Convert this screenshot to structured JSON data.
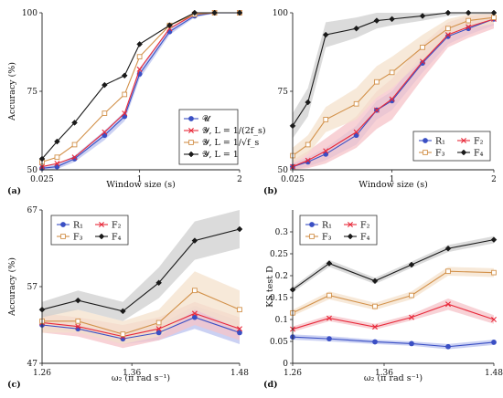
{
  "colors": {
    "s1": "#3a4fc4",
    "s2": "#e8293a",
    "s3": "#d2914a",
    "s4": "#1a1a1a",
    "band_s1": "#b9c2ef",
    "band_s2": "#f6c3c8",
    "band_s3": "#f4e2cc",
    "band_s4": "#cfcfcf"
  },
  "chart_data": [
    {
      "panel": "(a)",
      "type": "line",
      "xlabel": "Window size (s)",
      "ylabel": "Accuracy (%)",
      "xlim": [
        0.025,
        2
      ],
      "ylim": [
        50,
        100
      ],
      "xticks": [
        0.025,
        1,
        2
      ],
      "yticks": [
        50,
        75,
        100
      ],
      "x_tick_labels": [
        "0.025",
        "1",
        "2"
      ],
      "y_tick_labels": [
        "50",
        "75",
        "100"
      ],
      "legend_position": "lower-right",
      "x": [
        0.025,
        0.175,
        0.35,
        0.65,
        0.85,
        1.0,
        1.3,
        1.55,
        1.75,
        2.0
      ],
      "series": [
        {
          "name": "𝓤",
          "color": "s1",
          "marker": "circle",
          "values": [
            50.5,
            51.0,
            53.5,
            61.0,
            67.0,
            80.5,
            94.0,
            99.0,
            100,
            100
          ],
          "band": [
            [
              50.0,
              51.0
            ],
            [
              50.2,
              51.8
            ],
            [
              52.5,
              54.5
            ],
            [
              59.5,
              62.5
            ],
            [
              65.5,
              68.5
            ],
            [
              79.0,
              82.0
            ],
            [
              93.0,
              95.0
            ],
            [
              98.5,
              99.5
            ],
            [
              99.8,
              100
            ],
            [
              99.8,
              100
            ]
          ]
        },
        {
          "name": "𝓨, L = 1/(2f_s)",
          "color": "s2",
          "marker": "x",
          "values": [
            51.0,
            52.0,
            54.0,
            62.0,
            68.0,
            82.0,
            95.0,
            99.5,
            100,
            100
          ]
        },
        {
          "name": "𝓨, L = 1/√f_s",
          "color": "s3",
          "marker": "square",
          "values": [
            52.5,
            54.0,
            58.0,
            68.0,
            74.0,
            86.0,
            96.0,
            99.5,
            100,
            100
          ]
        },
        {
          "name": "𝓨, L = 1",
          "color": "s4",
          "marker": "diamond",
          "values": [
            53.5,
            59.0,
            65.0,
            77.0,
            80.0,
            90.0,
            96.0,
            100,
            100,
            100
          ]
        }
      ]
    },
    {
      "panel": "(b)",
      "type": "line",
      "xlabel": "Window size (s)",
      "ylabel": "",
      "xlim": [
        0.025,
        2
      ],
      "ylim": [
        50,
        100
      ],
      "xticks": [
        0.025,
        1,
        2
      ],
      "yticks": [
        50,
        75,
        100
      ],
      "x_tick_labels": [
        "0.025",
        "1",
        "2"
      ],
      "y_tick_labels": [
        "50",
        "75",
        "100"
      ],
      "legend_position": "lower-right",
      "x": [
        0.025,
        0.175,
        0.35,
        0.65,
        0.85,
        1.0,
        1.3,
        1.55,
        1.75,
        2.0
      ],
      "series": [
        {
          "name": "R₁",
          "color": "s1",
          "marker": "circle",
          "values": [
            51.0,
            52.5,
            55.0,
            61.0,
            69.0,
            72.0,
            84.0,
            92.5,
            95.0,
            98.0
          ],
          "band": [
            [
              50.0,
              52.0
            ],
            [
              51.0,
              54.0
            ],
            [
              53.0,
              57.0
            ],
            [
              58.0,
              64.0
            ],
            [
              66.0,
              72.0
            ],
            [
              69.0,
              75.0
            ],
            [
              81.0,
              87.0
            ],
            [
              90.0,
              95.0
            ],
            [
              93.0,
              97.0
            ],
            [
              96.0,
              99.5
            ]
          ]
        },
        {
          "name": "F₂",
          "color": "s2",
          "marker": "x",
          "values": [
            51.0,
            53.0,
            56.0,
            62.0,
            69.0,
            72.5,
            84.5,
            93.0,
            95.5,
            98.0
          ],
          "band": [
            [
              49.5,
              53.0
            ],
            [
              50.5,
              56.0
            ],
            [
              52.0,
              60.0
            ],
            [
              57.0,
              67.0
            ],
            [
              63.0,
              75.0
            ],
            [
              66.0,
              79.0
            ],
            [
              79.0,
              90.0
            ],
            [
              89.0,
              97.0
            ],
            [
              92.0,
              99.0
            ],
            [
              95.0,
              100
            ]
          ]
        },
        {
          "name": "F₃",
          "color": "s3",
          "marker": "square",
          "values": [
            54.5,
            58.0,
            66.0,
            71.0,
            78.0,
            81.0,
            89.0,
            95.0,
            97.5,
            98.5
          ],
          "band": [
            [
              52.0,
              57.0
            ],
            [
              55.0,
              61.0
            ],
            [
              62.0,
              70.0
            ],
            [
              66.0,
              76.0
            ],
            [
              73.0,
              83.0
            ],
            [
              76.0,
              86.0
            ],
            [
              85.0,
              93.0
            ],
            [
              92.0,
              98.0
            ],
            [
              95.0,
              99.5
            ],
            [
              96.5,
              100
            ]
          ]
        },
        {
          "name": "F₄",
          "color": "s4",
          "marker": "diamond",
          "values": [
            64.0,
            71.5,
            93.0,
            95.0,
            97.5,
            98.0,
            99.0,
            100,
            100,
            100
          ],
          "band": [
            [
              60.0,
              68.0
            ],
            [
              67.0,
              76.0
            ],
            [
              89.0,
              97.0
            ],
            [
              92.0,
              98.5
            ],
            [
              95.0,
              100
            ],
            [
              96.0,
              100
            ],
            [
              97.5,
              100
            ],
            [
              99.0,
              100
            ],
            [
              99.5,
              100
            ],
            [
              99.5,
              100
            ]
          ]
        }
      ]
    },
    {
      "panel": "(c)",
      "type": "line",
      "xlabel": "ω₂ (π rad s⁻¹)",
      "ylabel": "Accuracy (%)",
      "xlim": [
        1.26,
        1.48
      ],
      "ylim": [
        47,
        67
      ],
      "xticks": [
        1.26,
        1.36,
        1.48
      ],
      "yticks": [
        47,
        57,
        67
      ],
      "x_tick_labels": [
        "1.26",
        "1.36",
        "1.48"
      ],
      "y_tick_labels": [
        "47",
        "57",
        "67"
      ],
      "legend_position": "top-left",
      "x": [
        1.26,
        1.3,
        1.35,
        1.39,
        1.43,
        1.48
      ],
      "series": [
        {
          "name": "R₁",
          "color": "s1",
          "marker": "circle",
          "values": [
            52.0,
            51.5,
            50.2,
            51.0,
            53.0,
            51.0
          ],
          "band": [
            [
              51.5,
              52.5
            ],
            [
              51.0,
              52.0
            ],
            [
              49.5,
              51.0
            ],
            [
              50.0,
              52.0
            ],
            [
              51.5,
              54.5
            ],
            [
              49.5,
              52.5
            ]
          ]
        },
        {
          "name": "F₂",
          "color": "s2",
          "marker": "x",
          "values": [
            52.3,
            51.8,
            50.5,
            51.5,
            53.5,
            51.5
          ],
          "band": [
            [
              51.0,
              53.5
            ],
            [
              50.5,
              53.0
            ],
            [
              49.0,
              52.0
            ],
            [
              50.0,
              53.0
            ],
            [
              52.0,
              55.0
            ],
            [
              50.0,
              53.0
            ]
          ]
        },
        {
          "name": "F₃",
          "color": "s3",
          "marker": "square",
          "values": [
            52.5,
            52.5,
            50.8,
            52.3,
            56.5,
            54.0
          ],
          "band": [
            [
              51.0,
              54.0
            ],
            [
              51.0,
              54.0
            ],
            [
              49.5,
              52.5
            ],
            [
              50.5,
              54.0
            ],
            [
              54.0,
              59.0
            ],
            [
              51.5,
              56.5
            ]
          ]
        },
        {
          "name": "F₄",
          "color": "s4",
          "marker": "diamond",
          "values": [
            54.0,
            55.2,
            53.8,
            57.5,
            63.0,
            64.5
          ],
          "band": [
            [
              53.0,
              55.0
            ],
            [
              54.0,
              56.5
            ],
            [
              52.5,
              55.0
            ],
            [
              55.5,
              59.5
            ],
            [
              60.5,
              65.5
            ],
            [
              62.0,
              67.0
            ]
          ]
        }
      ]
    },
    {
      "panel": "(d)",
      "type": "line",
      "xlabel": "ω₂ (π rad s⁻¹)",
      "ylabel": "KS test D",
      "xlim": [
        1.26,
        1.48
      ],
      "ylim": [
        0,
        0.35
      ],
      "xticks": [
        1.26,
        1.36,
        1.48
      ],
      "yticks": [
        0,
        0.05,
        0.1,
        0.15,
        0.2,
        0.25,
        0.3
      ],
      "x_tick_labels": [
        "1.26",
        "1.36",
        "1.48"
      ],
      "y_tick_labels": [
        "0",
        "0.05",
        "0.1",
        "0.15",
        "0.2",
        "0.25",
        "0.3"
      ],
      "legend_position": "top-left",
      "x": [
        1.26,
        1.3,
        1.35,
        1.39,
        1.43,
        1.48
      ],
      "series": [
        {
          "name": "R₁",
          "color": "s1",
          "marker": "circle",
          "values": [
            0.06,
            0.056,
            0.049,
            0.045,
            0.038,
            0.048
          ],
          "band": [
            [
              0.054,
              0.066
            ],
            [
              0.05,
              0.062
            ],
            [
              0.044,
              0.054
            ],
            [
              0.04,
              0.05
            ],
            [
              0.032,
              0.044
            ],
            [
              0.042,
              0.054
            ]
          ]
        },
        {
          "name": "F₂",
          "color": "s2",
          "marker": "x",
          "values": [
            0.078,
            0.103,
            0.083,
            0.105,
            0.135,
            0.1
          ],
          "band": [
            [
              0.072,
              0.084
            ],
            [
              0.096,
              0.11
            ],
            [
              0.077,
              0.09
            ],
            [
              0.098,
              0.112
            ],
            [
              0.122,
              0.148
            ],
            [
              0.09,
              0.11
            ]
          ]
        },
        {
          "name": "F₃",
          "color": "s3",
          "marker": "square",
          "values": [
            0.115,
            0.155,
            0.13,
            0.155,
            0.21,
            0.207
          ],
          "band": [
            [
              0.108,
              0.122
            ],
            [
              0.146,
              0.164
            ],
            [
              0.122,
              0.138
            ],
            [
              0.146,
              0.164
            ],
            [
              0.2,
              0.22
            ],
            [
              0.197,
              0.217
            ]
          ]
        },
        {
          "name": "F₄",
          "color": "s4",
          "marker": "diamond",
          "values": [
            0.168,
            0.228,
            0.188,
            0.225,
            0.262,
            0.282
          ],
          "band": [
            [
              0.162,
              0.174
            ],
            [
              0.22,
              0.236
            ],
            [
              0.181,
              0.195
            ],
            [
              0.218,
              0.232
            ],
            [
              0.254,
              0.27
            ],
            [
              0.274,
              0.29
            ]
          ]
        }
      ]
    }
  ]
}
